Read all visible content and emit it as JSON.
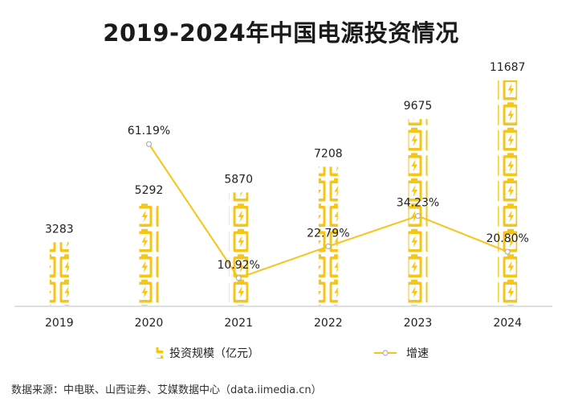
{
  "chart_data": {
    "type": "bar",
    "title": "2019-2024年中国电源投资情况",
    "categories": [
      "2019",
      "2020",
      "2021",
      "2022",
      "2023",
      "2024"
    ],
    "series": [
      {
        "name": "投资规模（亿元）",
        "type": "bar",
        "values": [
          3283,
          5292,
          5870,
          7208,
          9675,
          11687
        ]
      },
      {
        "name": "增速",
        "type": "line",
        "values": [
          null,
          61.19,
          10.92,
          22.79,
          34.23,
          20.8
        ],
        "labels": [
          "",
          "61.19%",
          "10.92%",
          "22.79%",
          "34.23%",
          "20.80%"
        ]
      }
    ],
    "xlabel": "",
    "ylabel": "",
    "ylim": [
      0,
      11687
    ],
    "rate_ylim": [
      0,
      70
    ],
    "grid": false,
    "legend_position": "bottom"
  },
  "source": "数据来源：中电联、山西证券、艾媒数据中心（data.iimedia.cn）",
  "colors": {
    "bar": "#F5C518",
    "bar_mark": "#F5C518",
    "line": "#F5C518",
    "point": "#B0B0B0",
    "axis": "#BFBFBF"
  }
}
